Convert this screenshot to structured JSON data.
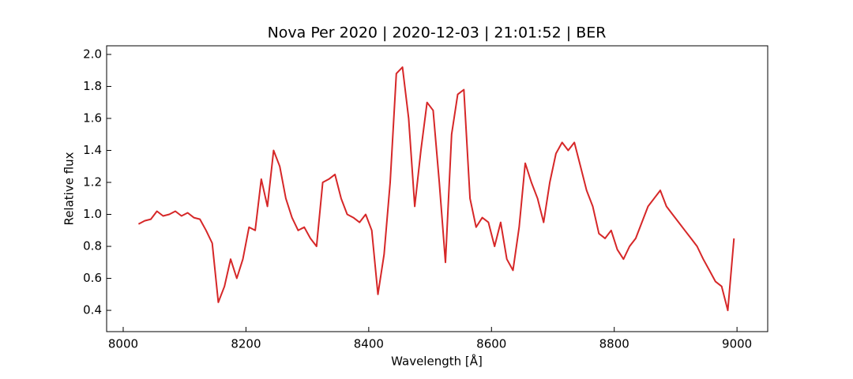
{
  "chart_data": {
    "type": "line",
    "title": "Nova Per 2020 | 2020-12-03 | 21:01:52 | BER",
    "xlabel": "Wavelength [Å]",
    "ylabel": "Relative flux",
    "x": [
      8025,
      8035,
      8045,
      8055,
      8065,
      8075,
      8085,
      8095,
      8105,
      8115,
      8125,
      8135,
      8145,
      8155,
      8165,
      8175,
      8185,
      8195,
      8205,
      8215,
      8225,
      8235,
      8245,
      8255,
      8265,
      8275,
      8285,
      8295,
      8305,
      8315,
      8325,
      8335,
      8345,
      8355,
      8365,
      8375,
      8385,
      8395,
      8405,
      8415,
      8425,
      8435,
      8445,
      8455,
      8465,
      8475,
      8485,
      8495,
      8505,
      8515,
      8525,
      8535,
      8545,
      8555,
      8565,
      8575,
      8585,
      8595,
      8605,
      8615,
      8625,
      8635,
      8645,
      8655,
      8665,
      8675,
      8685,
      8695,
      8705,
      8715,
      8725,
      8735,
      8745,
      8755,
      8765,
      8775,
      8785,
      8795,
      8805,
      8815,
      8825,
      8835,
      8845,
      8855,
      8865,
      8875,
      8885,
      8895,
      8905,
      8915,
      8925,
      8935,
      8945,
      8955,
      8965,
      8975,
      8985,
      8995
    ],
    "series": [
      {
        "color": "#d62728",
        "values": [
          0.94,
          0.96,
          0.97,
          1.02,
          0.99,
          1.0,
          1.02,
          0.99,
          1.01,
          0.98,
          0.97,
          0.9,
          0.82,
          0.45,
          0.55,
          0.72,
          0.6,
          0.72,
          0.92,
          0.9,
          1.22,
          1.05,
          1.4,
          1.3,
          1.1,
          0.98,
          0.9,
          0.92,
          0.85,
          0.8,
          1.2,
          1.22,
          1.25,
          1.1,
          1.0,
          0.98,
          0.95,
          1.0,
          0.9,
          0.5,
          0.75,
          1.2,
          1.88,
          1.92,
          1.6,
          1.05,
          1.4,
          1.7,
          1.65,
          1.2,
          0.7,
          1.5,
          1.75,
          1.78,
          1.1,
          0.92,
          0.98,
          0.95,
          0.8,
          0.95,
          0.72,
          0.65,
          0.92,
          1.32,
          1.2,
          1.1,
          0.95,
          1.2,
          1.38,
          1.45,
          1.4,
          1.45,
          1.3,
          1.15,
          1.05,
          0.88,
          0.85,
          0.9,
          0.78,
          0.72,
          0.8,
          0.85,
          0.95,
          1.05,
          1.1,
          1.15,
          1.05,
          1.0,
          0.95,
          0.9,
          0.85,
          0.8,
          0.72,
          0.65,
          0.58,
          0.55,
          0.4,
          0.85
        ]
      }
    ],
    "xlim": [
      7973,
      9050
    ],
    "ylim": [
      0.267,
      2.054
    ],
    "xticks": [
      8000,
      8200,
      8400,
      8600,
      8800,
      9000
    ],
    "yticks": [
      0.4,
      0.6,
      0.8,
      {
        "value": 1,
        "label": "1.0"
      },
      1.2,
      1.4,
      1.6,
      1.8,
      {
        "value": 2,
        "label": "2.0"
      }
    ]
  }
}
